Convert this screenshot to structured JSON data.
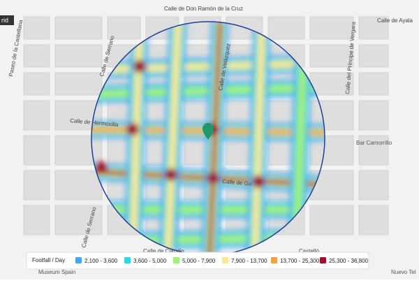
{
  "map": {
    "badge": "rid",
    "streets": [
      "Calle de Don Ramón de la Cruz",
      "Paseo de la Castellana",
      "Calle de Serrano",
      "Calle del Príncipe de Vergara",
      "Calle de Ayala",
      "Calle de Hermosilla",
      "Calle de Go",
      "Calle de Serrano",
      "Calle de Velázquez",
      "Castelló",
      "Calle de Claudio"
    ],
    "pois": [
      "Bar Camorrillo",
      "Museum Spain",
      "Nuevo Tel"
    ]
  },
  "legend": {
    "title": "Footfall / Day",
    "items": [
      {
        "label": "2,100 - 3,600",
        "color": "#4aa3f0"
      },
      {
        "label": "3,600 - 5,000",
        "color": "#2fd6e8"
      },
      {
        "label": "5,000 - 7,900",
        "color": "#9ef07a"
      },
      {
        "label": "7,900 - 13,700",
        "color": "#fbe79a"
      },
      {
        "label": "13,700 - 25,300",
        "color": "#f0a040"
      },
      {
        "label": "25,300 - 36,800",
        "color": "#a0102a"
      }
    ]
  }
}
